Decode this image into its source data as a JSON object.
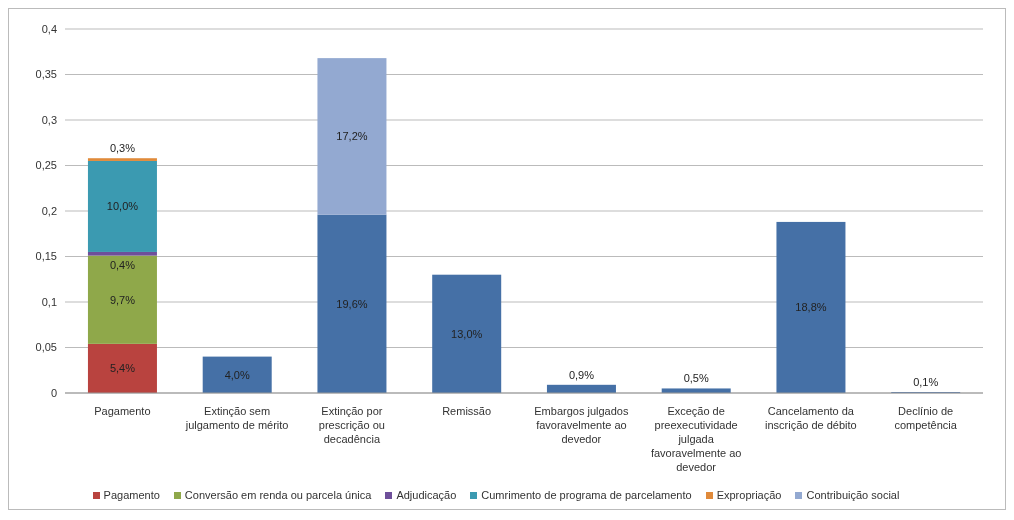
{
  "chart_data": {
    "type": "bar",
    "stacked": true,
    "categories": [
      "Pagamento",
      "Extinção sem julgamento de mérito",
      "Extinção por prescrição ou decadência",
      "Remissão",
      "Embargos julgados favoravelmente ao devedor",
      "Exceção de preexecutividade julgada favoravelmente ao devedor",
      "Cancelamento da inscrição de débito",
      "Declínio de competência"
    ],
    "series": [
      {
        "name": "Pagamento",
        "color": "#b9433f",
        "values": [
          0.054,
          null,
          null,
          null,
          null,
          null,
          null,
          null
        ],
        "value_labels": [
          "5,4%",
          null,
          null,
          null,
          null,
          null,
          null,
          null
        ]
      },
      {
        "name": "Conversão em renda ou parcela única",
        "color": "#8fa84a",
        "values": [
          0.097,
          null,
          null,
          null,
          null,
          null,
          null,
          null
        ],
        "value_labels": [
          "9,7%",
          null,
          null,
          null,
          null,
          null,
          null,
          null
        ]
      },
      {
        "name": "Adjudicação",
        "color": "#6e4f9a",
        "values": [
          0.004,
          null,
          null,
          null,
          null,
          null,
          null,
          null
        ],
        "value_labels": [
          "0,4%",
          null,
          null,
          null,
          null,
          null,
          null,
          null
        ]
      },
      {
        "name": "Cumrimento de programa de parcelamento",
        "color": "#3b9ab1",
        "values": [
          0.1,
          null,
          null,
          null,
          null,
          null,
          null,
          null
        ],
        "value_labels": [
          "10,0%",
          null,
          null,
          null,
          null,
          null,
          null,
          null
        ]
      },
      {
        "name": "Expropriação",
        "color": "#e08a3a",
        "values": [
          0.003,
          null,
          null,
          null,
          null,
          null,
          null,
          null
        ],
        "value_labels": [
          "0,3%",
          null,
          null,
          null,
          null,
          null,
          null,
          null
        ]
      },
      {
        "color": "#4570a6",
        "values": [
          null,
          0.04,
          0.196,
          0.13,
          0.009,
          0.005,
          0.188,
          0.001
        ],
        "value_labels": [
          null,
          "4,0%",
          "19,6%",
          "13,0%",
          "0,9%",
          "0,5%",
          "18,8%",
          "0,1%"
        ]
      },
      {
        "name": "Contribuição social",
        "color": "#93a9d1",
        "values": [
          null,
          null,
          0.172,
          null,
          null,
          null,
          null,
          null
        ],
        "value_labels": [
          null,
          null,
          "17,2%",
          null,
          null,
          null,
          null,
          null
        ]
      }
    ],
    "ylim": [
      0,
      0.4
    ],
    "yticks": [
      0,
      {
        "value": 0.05,
        "label": "0,05"
      },
      {
        "value": 0.1,
        "label": "0,1"
      },
      {
        "value": 0.15,
        "label": "0,15"
      },
      {
        "value": 0.2,
        "label": "0,2"
      },
      {
        "value": 0.25,
        "label": "0,25"
      },
      {
        "value": 0.3,
        "label": "0,3"
      },
      {
        "value": 0.35,
        "label": "0,35"
      },
      {
        "value": 0.4,
        "label": "0,4"
      }
    ],
    "grid": "y",
    "legend": "bottom"
  }
}
